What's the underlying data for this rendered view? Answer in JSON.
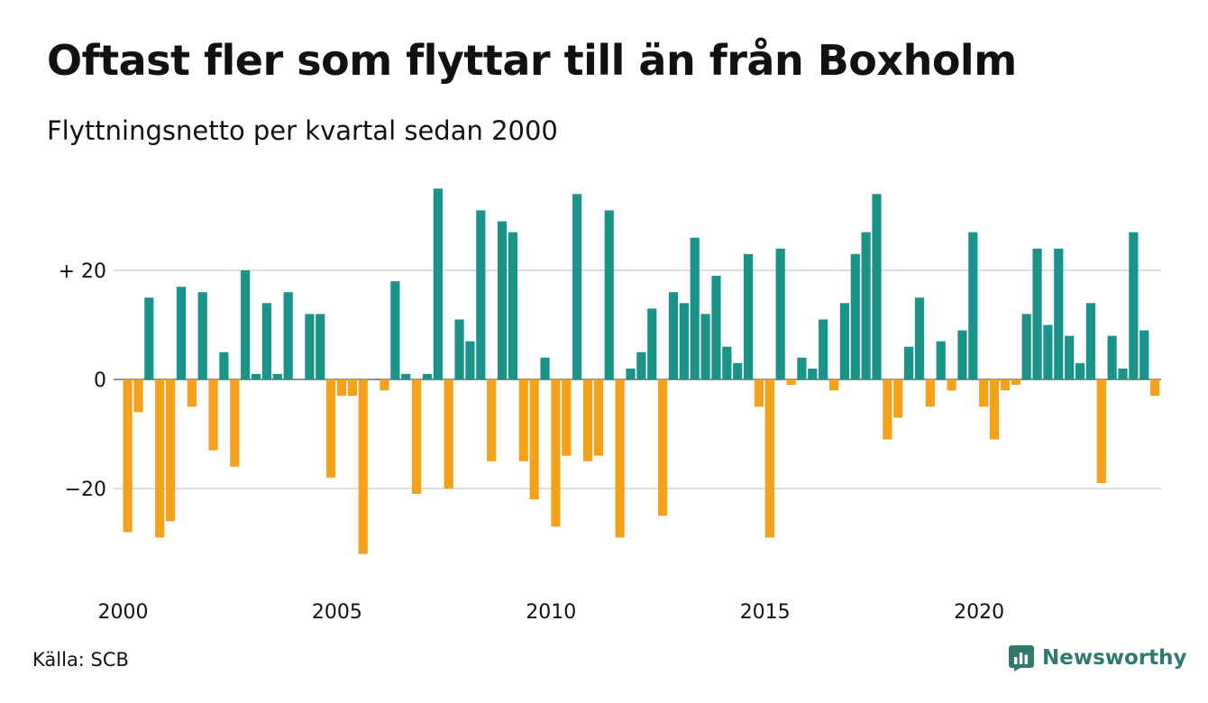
{
  "title": "Oftast fler som flyttar till än från Boxholm",
  "subtitle": "Flyttningsnetto per kvartal sedan 2000",
  "source": "Källa: SCB",
  "brand": "Newsworthy",
  "colors": {
    "positive": "#1a9488",
    "negative": "#f6a11c",
    "grid": "#dddddd",
    "brand": "#2f7a6f"
  },
  "chart_data": {
    "type": "bar",
    "x_start": "2000-Q1",
    "x_tick_labels": [
      "2000",
      "2005",
      "2010",
      "2015",
      "2020"
    ],
    "y_ticks": [
      20,
      0,
      -20
    ],
    "y_tick_labels": [
      "+ 20",
      "0",
      "−20"
    ],
    "ylim": [
      -38,
      36
    ],
    "grid": true,
    "values": [
      -28,
      -6,
      15,
      -29,
      -26,
      17,
      -5,
      16,
      -13,
      5,
      -16,
      20,
      1,
      14,
      1,
      16,
      0,
      12,
      12,
      -18,
      -3,
      -3,
      -32,
      0,
      -2,
      18,
      1,
      -21,
      1,
      35,
      -20,
      11,
      7,
      31,
      -15,
      29,
      27,
      -15,
      -22,
      4,
      -27,
      -14,
      34,
      -15,
      -14,
      31,
      -29,
      2,
      5,
      13,
      -25,
      16,
      14,
      26,
      12,
      19,
      6,
      3,
      23,
      -5,
      -29,
      24,
      -1,
      4,
      2,
      11,
      -2,
      14,
      23,
      27,
      34,
      -11,
      -7,
      6,
      15,
      -5,
      7,
      -2,
      9,
      27,
      -5,
      -11,
      -2,
      -1,
      12,
      24,
      10,
      24,
      8,
      3,
      14,
      -19,
      8,
      2,
      27,
      9,
      -3
    ]
  }
}
